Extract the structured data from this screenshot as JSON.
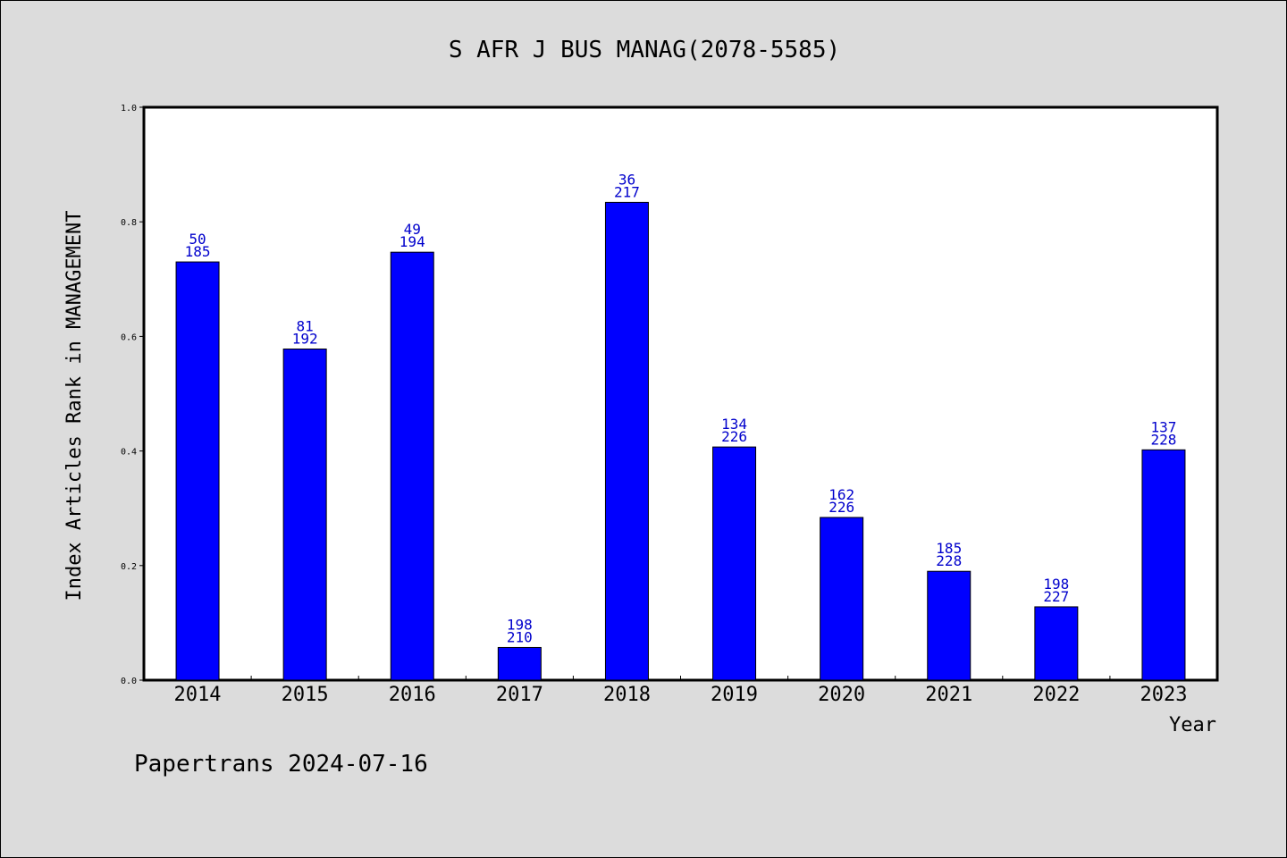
{
  "chart_data": {
    "type": "bar",
    "title": "S AFR J BUS MANAG(2078-5585)",
    "xlabel": "Year",
    "ylabel": "Index Articles Rank in MANAGEMENT",
    "ylim": [
      0,
      1.0
    ],
    "yticks": [
      "0.0",
      "0.2",
      "0.4",
      "0.6",
      "0.8",
      "1.0"
    ],
    "categories": [
      "2014",
      "2015",
      "2016",
      "2017",
      "2018",
      "2019",
      "2020",
      "2021",
      "2022",
      "2023"
    ],
    "values": [
      0.73,
      0.578,
      0.747,
      0.057,
      0.834,
      0.407,
      0.284,
      0.19,
      0.128,
      0.402
    ],
    "rank": [
      "50",
      "81",
      "49",
      "198",
      "36",
      "134",
      "162",
      "185",
      "198",
      "137"
    ],
    "total": [
      "185",
      "192",
      "194",
      "210",
      "217",
      "226",
      "226",
      "228",
      "227",
      "228"
    ],
    "grid": false,
    "bar_color": "#0000ff",
    "label_color": "#0000cc"
  },
  "footer": "Papertrans 2024-07-16"
}
